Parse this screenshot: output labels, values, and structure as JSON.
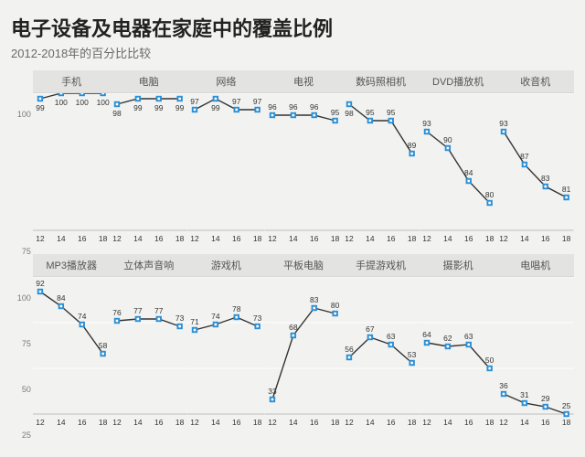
{
  "title": "电子设备及电器在家庭中的覆盖比例",
  "subtitle": "2012-2018年的百分比比较",
  "background_color": "#f2f2f0",
  "panel_header_bg": "#e3e3e1",
  "line_color": "#333333",
  "marker_color": "#2a8fd4",
  "marker_inner_color": "#ffffff",
  "gridline_color": "#ffffff",
  "axis_color": "#bdbdbb",
  "text_color": "#555555",
  "x_ticks": [
    "12",
    "14",
    "16",
    "18"
  ],
  "rows": [
    {
      "ylim": [
        75,
        100
      ],
      "yticks": [
        75,
        100
      ],
      "panels": [
        {
          "label": "手机",
          "values": [
            99,
            100,
            100,
            100
          ]
        },
        {
          "label": "电脑",
          "values": [
            98,
            99,
            99,
            99
          ]
        },
        {
          "label": "网络",
          "values": [
            97,
            99,
            97,
            97
          ]
        },
        {
          "label": "电视",
          "values": [
            96,
            96,
            96,
            95
          ]
        },
        {
          "label": "数码照相机",
          "values": [
            98,
            95,
            95,
            89
          ]
        },
        {
          "label": "DVD播放机",
          "values": [
            93,
            90,
            84,
            80
          ]
        },
        {
          "label": "收音机",
          "values": [
            93,
            87,
            83,
            81
          ]
        }
      ]
    },
    {
      "ylim": [
        25,
        100
      ],
      "yticks": [
        25,
        50,
        75,
        100
      ],
      "panels": [
        {
          "label": "MP3播放器",
          "values": [
            92,
            84,
            74,
            58
          ]
        },
        {
          "label": "立体声音响",
          "values": [
            76,
            77,
            77,
            73
          ]
        },
        {
          "label": "游戏机",
          "values": [
            71,
            74,
            78,
            73
          ]
        },
        {
          "label": "平板电脑",
          "values": [
            33,
            68,
            83,
            80
          ]
        },
        {
          "label": "手提游戏机",
          "values": [
            56,
            67,
            63,
            53
          ]
        },
        {
          "label": "摄影机",
          "values": [
            64,
            62,
            63,
            50
          ]
        },
        {
          "label": "电唱机",
          "values": [
            36,
            31,
            29,
            25
          ]
        }
      ]
    }
  ]
}
